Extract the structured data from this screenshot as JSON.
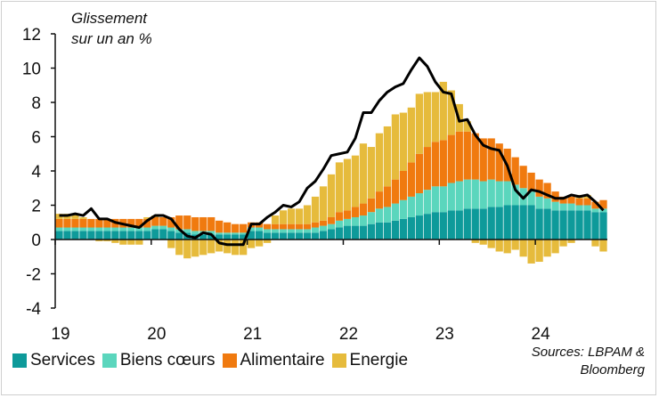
{
  "chart_data": {
    "type": "bar",
    "stacked": true,
    "unit_label_line1": "Glissement",
    "unit_label_line2": "sur un an %",
    "ylim": [
      -4,
      12
    ],
    "yticks": [
      "-4",
      "-2",
      "0",
      "2",
      "4",
      "6",
      "8",
      "10",
      "12"
    ],
    "xticks": [
      "19",
      "20",
      "21",
      "22",
      "23",
      "24"
    ],
    "x_start": "2019-01",
    "x_end": "2024-09",
    "months": [
      "2019-01",
      "2019-02",
      "2019-03",
      "2019-04",
      "2019-05",
      "2019-06",
      "2019-07",
      "2019-08",
      "2019-09",
      "2019-10",
      "2019-11",
      "2019-12",
      "2020-01",
      "2020-02",
      "2020-03",
      "2020-04",
      "2020-05",
      "2020-06",
      "2020-07",
      "2020-08",
      "2020-09",
      "2020-10",
      "2020-11",
      "2020-12",
      "2021-01",
      "2021-02",
      "2021-03",
      "2021-04",
      "2021-05",
      "2021-06",
      "2021-07",
      "2021-08",
      "2021-09",
      "2021-10",
      "2021-11",
      "2021-12",
      "2022-01",
      "2022-02",
      "2022-03",
      "2022-04",
      "2022-05",
      "2022-06",
      "2022-07",
      "2022-08",
      "2022-09",
      "2022-10",
      "2022-11",
      "2022-12",
      "2023-01",
      "2023-02",
      "2023-03",
      "2023-04",
      "2023-05",
      "2023-06",
      "2023-07",
      "2023-08",
      "2023-09",
      "2023-10",
      "2023-11",
      "2023-12",
      "2024-01",
      "2024-02",
      "2024-03",
      "2024-04",
      "2024-05",
      "2024-06",
      "2024-07",
      "2024-08",
      "2024-09"
    ],
    "grid": false,
    "legend_position": "bottom-left",
    "series": [
      {
        "name": "Services",
        "color": "#0e9a9a",
        "values": [
          0.5,
          0.5,
          0.5,
          0.5,
          0.5,
          0.5,
          0.5,
          0.5,
          0.5,
          0.5,
          0.5,
          0.5,
          0.6,
          0.6,
          0.5,
          0.4,
          0.4,
          0.3,
          0.3,
          0.3,
          0.3,
          0.3,
          0.3,
          0.3,
          0.5,
          0.5,
          0.4,
          0.4,
          0.4,
          0.4,
          0.4,
          0.4,
          0.4,
          0.5,
          0.6,
          0.7,
          0.8,
          0.8,
          0.8,
          0.9,
          1.0,
          1.0,
          1.1,
          1.2,
          1.3,
          1.4,
          1.5,
          1.6,
          1.6,
          1.7,
          1.7,
          1.8,
          1.8,
          1.8,
          1.9,
          1.9,
          2.0,
          2.0,
          2.0,
          2.0,
          1.8,
          1.8,
          1.7,
          1.7,
          1.7,
          1.7,
          1.7,
          1.6,
          1.6
        ]
      },
      {
        "name": "Biens cœurs",
        "color": "#5bd6bd",
        "values": [
          0.2,
          0.2,
          0.2,
          0.2,
          0.2,
          0.2,
          0.2,
          0.2,
          0.2,
          0.2,
          0.2,
          0.2,
          0.2,
          0.2,
          0.2,
          0.2,
          0.2,
          0.2,
          0.2,
          0.2,
          0.1,
          0.1,
          0.1,
          0.1,
          0.2,
          0.2,
          0.2,
          0.2,
          0.2,
          0.2,
          0.2,
          0.2,
          0.3,
          0.3,
          0.3,
          0.4,
          0.4,
          0.5,
          0.6,
          0.7,
          0.8,
          0.9,
          1.0,
          1.1,
          1.2,
          1.3,
          1.4,
          1.5,
          1.5,
          1.6,
          1.7,
          1.7,
          1.7,
          1.6,
          1.6,
          1.5,
          1.4,
          1.2,
          1.0,
          0.8,
          0.7,
          0.6,
          0.5,
          0.4,
          0.4,
          0.3,
          0.3,
          0.2,
          0.2
        ]
      },
      {
        "name": "Alimentaire",
        "color": "#f07a0f",
        "values": [
          0.5,
          0.5,
          0.5,
          0.5,
          0.5,
          0.5,
          0.5,
          0.5,
          0.5,
          0.5,
          0.5,
          0.5,
          0.5,
          0.5,
          0.6,
          0.8,
          0.8,
          0.8,
          0.8,
          0.8,
          0.7,
          0.6,
          0.5,
          0.5,
          0.3,
          0.3,
          0.3,
          0.3,
          0.3,
          0.3,
          0.3,
          0.3,
          0.3,
          0.3,
          0.4,
          0.5,
          0.5,
          0.6,
          0.7,
          0.8,
          1.0,
          1.2,
          1.4,
          1.7,
          2.0,
          2.3,
          2.5,
          2.6,
          2.7,
          2.8,
          2.9,
          2.8,
          2.7,
          2.5,
          2.4,
          2.2,
          1.9,
          1.6,
          1.3,
          1.1,
          1.0,
          0.9,
          0.6,
          0.4,
          0.4,
          0.4,
          0.4,
          0.4,
          0.5
        ]
      },
      {
        "name": "Energie",
        "color": "#e6bb3c",
        "values": [
          0.3,
          0.3,
          0.3,
          0.1,
          0.0,
          -0.1,
          -0.1,
          -0.2,
          -0.3,
          -0.3,
          -0.3,
          0.1,
          0.1,
          0.0,
          -0.5,
          -0.9,
          -1.1,
          -1.0,
          -0.9,
          -0.8,
          -0.7,
          -0.8,
          -0.9,
          -0.9,
          -0.5,
          -0.4,
          -0.2,
          0.5,
          0.8,
          0.9,
          0.9,
          1.1,
          1.5,
          2.0,
          2.5,
          2.9,
          3.0,
          3.0,
          3.5,
          3.0,
          3.4,
          3.5,
          3.8,
          3.4,
          3.2,
          3.5,
          3.2,
          2.9,
          3.4,
          2.6,
          1.6,
          0.6,
          -0.2,
          -0.3,
          -0.5,
          -0.7,
          -0.8,
          -0.6,
          -1.0,
          -1.4,
          -1.3,
          -1.0,
          -0.8,
          -0.4,
          -0.2,
          0.2,
          0.2,
          -0.4,
          -0.7
        ]
      }
    ],
    "total_line": {
      "color": "#000000",
      "values": [
        1.4,
        1.4,
        1.5,
        1.4,
        1.8,
        1.2,
        1.2,
        1.0,
        0.9,
        0.8,
        0.7,
        1.1,
        1.4,
        1.4,
        1.2,
        0.6,
        0.2,
        0.1,
        0.4,
        0.3,
        -0.2,
        -0.3,
        -0.3,
        -0.3,
        0.9,
        0.9,
        1.3,
        1.6,
        2.0,
        1.9,
        2.2,
        3.0,
        3.4,
        4.1,
        4.9,
        5.0,
        5.1,
        5.9,
        7.4,
        7.4,
        8.1,
        8.6,
        8.9,
        9.1,
        9.9,
        10.6,
        10.1,
        9.2,
        8.6,
        8.5,
        6.9,
        7.0,
        6.1,
        5.5,
        5.3,
        5.2,
        4.3,
        2.9,
        2.4,
        2.9,
        2.8,
        2.6,
        2.4,
        2.4,
        2.6,
        2.5,
        2.6,
        2.2,
        1.7
      ]
    }
  },
  "legend": {
    "items": [
      {
        "label": "Services",
        "color": "#0e9a9a"
      },
      {
        "label": "Biens cœurs",
        "color": "#5bd6bd"
      },
      {
        "label": "Alimentaire",
        "color": "#f07a0f"
      },
      {
        "label": "Energie",
        "color": "#e6bb3c"
      }
    ]
  },
  "source": {
    "line1": "Sources: LBPAM &",
    "line2": "Bloomberg"
  }
}
